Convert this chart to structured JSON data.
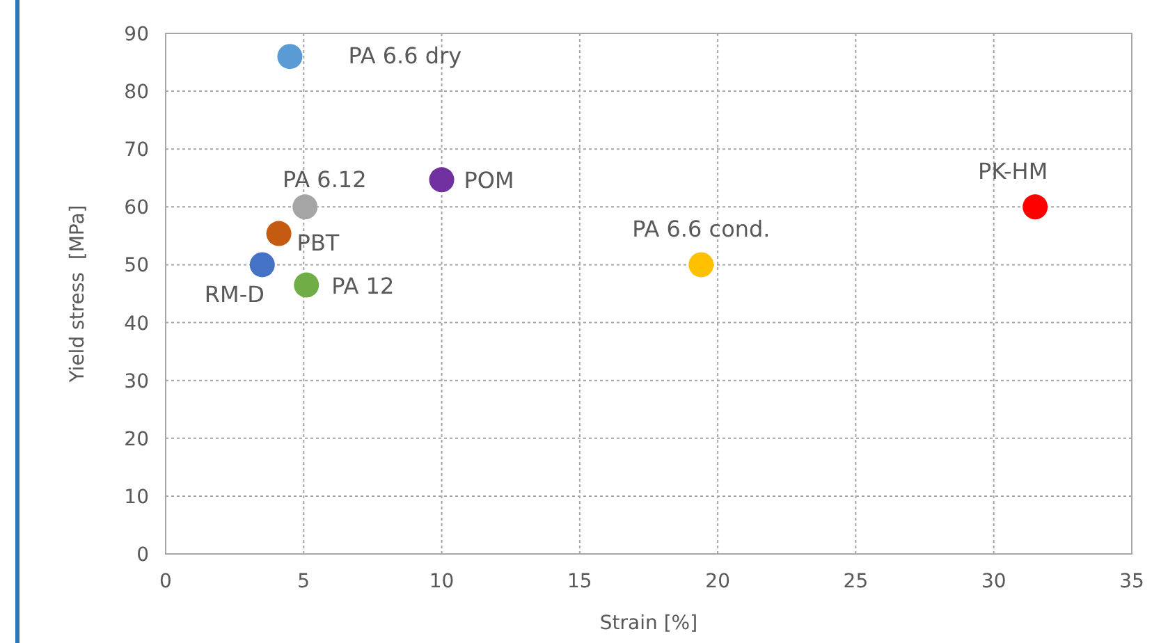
{
  "chart_data": {
    "type": "scatter",
    "xlabel": "Strain [%]",
    "ylabel": "Yield stress  [MPa]",
    "xlim": [
      0,
      35
    ],
    "xticks": [
      0,
      5,
      10,
      15,
      20,
      25,
      30,
      35
    ],
    "ylim": [
      0,
      90
    ],
    "yticks": [
      0,
      10,
      20,
      30,
      40,
      50,
      60,
      70,
      80,
      90
    ],
    "grid": true,
    "marker": "circle",
    "series": [
      {
        "name": "PA 6.6 dry",
        "color": "#5b9bd5",
        "x": [
          4.5
        ],
        "values": [
          86
        ]
      },
      {
        "name": "POM",
        "color": "#7030a0",
        "x": [
          10
        ],
        "values": [
          64.7
        ]
      },
      {
        "name": "PA 6.12",
        "color": "#a5a5a5",
        "x": [
          5.05
        ],
        "values": [
          60
        ]
      },
      {
        "name": "PBT",
        "color": "#c55a11",
        "x": [
          4.1
        ],
        "values": [
          55.4
        ]
      },
      {
        "name": "RM-D",
        "color": "#4472c4",
        "x": [
          3.5
        ],
        "values": [
          50
        ]
      },
      {
        "name": "PA 12",
        "color": "#70ad47",
        "x": [
          5.1
        ],
        "values": [
          46.5
        ]
      },
      {
        "name": "PA 6.6 cond.",
        "color": "#ffc000",
        "x": [
          19.4
        ],
        "values": [
          50
        ]
      },
      {
        "name": "PK-HM",
        "color": "#ff0000",
        "x": [
          31.5
        ],
        "values": [
          60
        ]
      }
    ]
  }
}
